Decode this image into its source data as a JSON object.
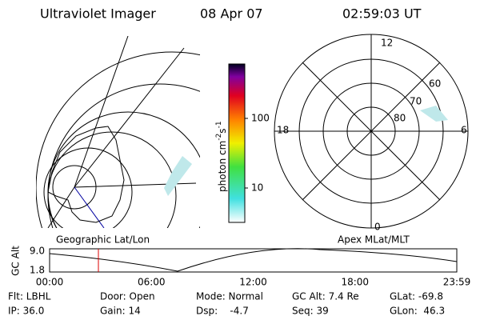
{
  "header": {
    "title": "Ultraviolet Imager",
    "date": "08 Apr 07",
    "time": "02:59:03 UT"
  },
  "colorbar": {
    "label": "photon cm",
    "exp1": "-2",
    "unit2": "s",
    "exp2": "-1",
    "ticks": [
      "100",
      "10"
    ]
  },
  "polar": {
    "labels": [
      "12",
      "60",
      "70",
      "80",
      "18",
      "6",
      "0"
    ]
  },
  "maps": {
    "left": "Geographic Lat/Lon",
    "right": "Apex MLat/MLT"
  },
  "altitude_plot": {
    "ylabel": "GC Alt",
    "yticks": [
      "9.0",
      "1.8"
    ],
    "xticks": [
      "00:00",
      "06:00",
      "12:00",
      "18:00",
      "23:59"
    ]
  },
  "info": {
    "rows": [
      [
        "Flt: LBHL",
        "Door: Open",
        "Mode: Normal",
        "GC Alt: 7.4 Re",
        "GLat: -69.8"
      ],
      [
        "IP: 36.0",
        "Gain: 14",
        "Dsp:    -4.7",
        "Seq: 39",
        "GLon:  46.3"
      ]
    ]
  }
}
